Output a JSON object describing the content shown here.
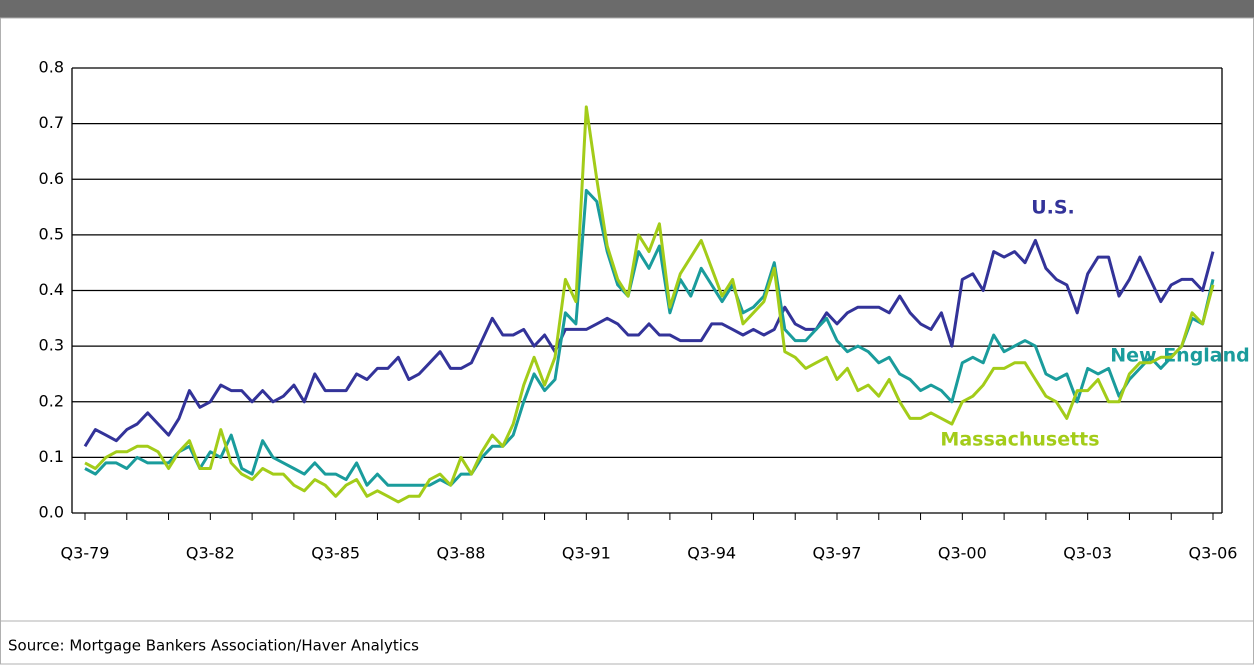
{
  "chart_data": {
    "type": "line",
    "categories": [
      "Q3-79",
      null,
      null,
      null,
      null,
      null,
      null,
      null,
      null,
      null,
      null,
      null,
      "Q3-82",
      null,
      null,
      null,
      null,
      null,
      null,
      null,
      null,
      null,
      null,
      null,
      "Q3-85",
      null,
      null,
      null,
      null,
      null,
      null,
      null,
      null,
      null,
      null,
      null,
      "Q3-88",
      null,
      null,
      null,
      null,
      null,
      null,
      null,
      null,
      null,
      null,
      null,
      "Q3-91",
      null,
      null,
      null,
      null,
      null,
      null,
      null,
      null,
      null,
      null,
      null,
      "Q3-94",
      null,
      null,
      null,
      null,
      null,
      null,
      null,
      null,
      null,
      null,
      null,
      "Q3-97",
      null,
      null,
      null,
      null,
      null,
      null,
      null,
      null,
      null,
      null,
      null,
      "Q3-00",
      null,
      null,
      null,
      null,
      null,
      null,
      null,
      null,
      null,
      null,
      null,
      "Q3-03",
      null,
      null,
      null,
      null,
      null,
      null,
      null,
      null,
      null,
      null,
      null,
      "Q3-06"
    ],
    "series": [
      {
        "name": "U.S.",
        "color": "#333399",
        "values": [
          0.12,
          0.15,
          0.14,
          0.13,
          0.15,
          0.16,
          0.18,
          0.16,
          0.14,
          0.17,
          0.22,
          0.19,
          0.2,
          0.23,
          0.22,
          0.22,
          0.2,
          0.22,
          0.2,
          0.21,
          0.23,
          0.2,
          0.25,
          0.22,
          0.22,
          0.22,
          0.25,
          0.24,
          0.26,
          0.26,
          0.28,
          0.24,
          0.25,
          0.27,
          0.29,
          0.26,
          0.26,
          0.27,
          0.31,
          0.35,
          0.32,
          0.32,
          0.33,
          0.3,
          0.32,
          0.29,
          0.33,
          0.33,
          0.33,
          0.34,
          0.35,
          0.34,
          0.32,
          0.32,
          0.34,
          0.32,
          0.32,
          0.31,
          0.31,
          0.31,
          0.34,
          0.34,
          0.33,
          0.32,
          0.33,
          0.32,
          0.33,
          0.37,
          0.34,
          0.33,
          0.33,
          0.36,
          0.34,
          0.36,
          0.37,
          0.37,
          0.37,
          0.36,
          0.39,
          0.36,
          0.34,
          0.33,
          0.36,
          0.3,
          0.42,
          0.43,
          0.4,
          0.47,
          0.46,
          0.47,
          0.45,
          0.49,
          0.44,
          0.42,
          0.41,
          0.36,
          0.43,
          0.46,
          0.46,
          0.39,
          0.42,
          0.46,
          0.42,
          0.38,
          0.41,
          0.42,
          0.42,
          0.4,
          0.47
        ]
      },
      {
        "name": "New England",
        "color": "#1a9c9c",
        "values": [
          0.08,
          0.07,
          0.09,
          0.09,
          0.08,
          0.1,
          0.09,
          0.09,
          0.09,
          0.11,
          0.12,
          0.08,
          0.11,
          0.1,
          0.14,
          0.08,
          0.07,
          0.13,
          0.1,
          0.09,
          0.08,
          0.07,
          0.09,
          0.07,
          0.07,
          0.06,
          0.09,
          0.05,
          0.07,
          0.05,
          0.05,
          0.05,
          0.05,
          0.05,
          0.06,
          0.05,
          0.07,
          0.07,
          0.1,
          0.12,
          0.12,
          0.14,
          0.2,
          0.25,
          0.22,
          0.24,
          0.36,
          0.34,
          0.58,
          0.56,
          0.47,
          0.41,
          0.39,
          0.47,
          0.44,
          0.48,
          0.36,
          0.42,
          0.39,
          0.44,
          0.41,
          0.38,
          0.41,
          0.36,
          0.37,
          0.39,
          0.45,
          0.33,
          0.31,
          0.31,
          0.33,
          0.35,
          0.31,
          0.29,
          0.3,
          0.29,
          0.27,
          0.28,
          0.25,
          0.24,
          0.22,
          0.23,
          0.22,
          0.2,
          0.27,
          0.28,
          0.27,
          0.32,
          0.29,
          0.3,
          0.31,
          0.3,
          0.25,
          0.24,
          0.25,
          0.2,
          0.26,
          0.25,
          0.26,
          0.21,
          0.24,
          0.26,
          0.28,
          0.26,
          0.28,
          0.3,
          0.35,
          0.34,
          0.42
        ]
      },
      {
        "name": "Massachusetts",
        "color": "#a3cc19",
        "values": [
          0.09,
          0.08,
          0.1,
          0.11,
          0.11,
          0.12,
          0.12,
          0.11,
          0.08,
          0.11,
          0.13,
          0.08,
          0.08,
          0.15,
          0.09,
          0.07,
          0.06,
          0.08,
          0.07,
          0.07,
          0.05,
          0.04,
          0.06,
          0.05,
          0.03,
          0.05,
          0.06,
          0.03,
          0.04,
          0.03,
          0.02,
          0.03,
          0.03,
          0.06,
          0.07,
          0.05,
          0.1,
          0.07,
          0.11,
          0.14,
          0.12,
          0.16,
          0.23,
          0.28,
          0.23,
          0.28,
          0.42,
          0.38,
          0.73,
          0.6,
          0.48,
          0.42,
          0.39,
          0.5,
          0.47,
          0.52,
          0.37,
          0.43,
          0.46,
          0.49,
          0.44,
          0.39,
          0.42,
          0.34,
          0.36,
          0.38,
          0.44,
          0.29,
          0.28,
          0.26,
          0.27,
          0.28,
          0.24,
          0.26,
          0.22,
          0.23,
          0.21,
          0.24,
          0.2,
          0.17,
          0.17,
          0.18,
          0.17,
          0.16,
          0.2,
          0.21,
          0.23,
          0.26,
          0.26,
          0.27,
          0.27,
          0.24,
          0.21,
          0.2,
          0.17,
          0.22,
          0.22,
          0.24,
          0.2,
          0.2,
          0.25,
          0.27,
          0.27,
          0.28,
          0.28,
          0.3,
          0.36,
          0.34,
          0.41
        ]
      }
    ],
    "ylim": [
      0,
      0.8
    ],
    "yticks": [
      {
        "value": 0,
        "label": "0.0"
      },
      0.1,
      0.2,
      0.3,
      0.4,
      0.5,
      0.6,
      0.7,
      0.8
    ],
    "grid": true,
    "source": "Source: Mortgage Bankers Association/Haver Analytics"
  }
}
